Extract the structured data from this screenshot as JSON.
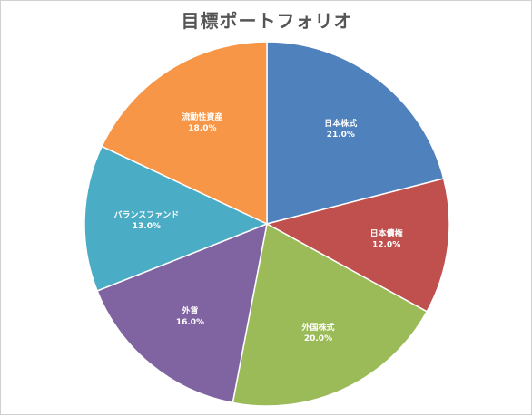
{
  "chart_data": {
    "type": "pie",
    "title": "目標ポートフォリオ",
    "start_angle_deg": 0,
    "direction": "clockwise",
    "slices": [
      {
        "label": "日本株式",
        "value": 21.0,
        "value_label": "21.0%",
        "color": "#4f81bd"
      },
      {
        "label": "日本債権",
        "value": 12.0,
        "value_label": "12.0%",
        "color": "#c0504d"
      },
      {
        "label": "外国株式",
        "value": 20.0,
        "value_label": "20.0%",
        "color": "#9bbb59"
      },
      {
        "label": "外貨",
        "value": 16.0,
        "value_label": "16.0%",
        "color": "#8064a2"
      },
      {
        "label": "バランスファンド",
        "value": 13.0,
        "value_label": "13.0%",
        "color": "#4bacc6"
      },
      {
        "label": "流動性資産",
        "value": 18.0,
        "value_label": "18.0%",
        "color": "#f79646"
      }
    ]
  }
}
